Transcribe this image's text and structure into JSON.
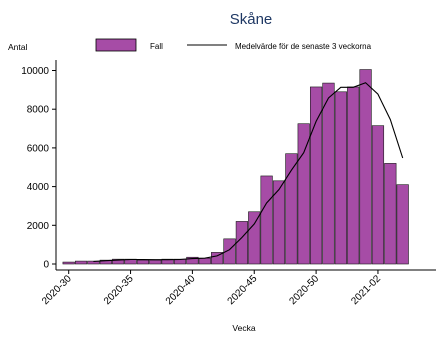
{
  "chart_data": {
    "type": "bar",
    "title": "Skåne",
    "ylabel": "Antal",
    "xlabel": "Vecka",
    "ylim": [
      0,
      11000
    ],
    "yticks": [
      0,
      2000,
      4000,
      6000,
      8000,
      10000
    ],
    "grid": false,
    "legend_position": "top",
    "categories": [
      "2020-30",
      "2020-31",
      "2020-32",
      "2020-33",
      "2020-34",
      "2020-35",
      "2020-36",
      "2020-37",
      "2020-38",
      "2020-39",
      "2020-40",
      "2020-41",
      "2020-42",
      "2020-43",
      "2020-44",
      "2020-45",
      "2020-46",
      "2020-47",
      "2020-48",
      "2020-49",
      "2020-50",
      "2020-51",
      "2020-52",
      "2020-53",
      "2021-01",
      "2021-02",
      "2021-03",
      "2021-04"
    ],
    "xtick_labels": [
      "2020-30",
      "2020-35",
      "2020-40",
      "2020-45",
      "2020-50",
      "2021-02"
    ],
    "series": [
      {
        "name": "Fall",
        "type": "bar",
        "color": "#a64ca6",
        "values": [
          100,
          150,
          150,
          200,
          250,
          250,
          200,
          200,
          250,
          250,
          350,
          300,
          600,
          1300,
          2200,
          2700,
          4550,
          4300,
          5700,
          7250,
          9150,
          9350,
          8900,
          9150,
          10050,
          7150,
          5200,
          4100
        ]
      },
      {
        "name": "Medelvärde för de senaste 3 veckorna",
        "type": "line",
        "color": "#000000",
        "values": [
          null,
          null,
          130,
          170,
          200,
          230,
          230,
          220,
          220,
          230,
          280,
          300,
          420,
          740,
          1370,
          2070,
          3150,
          3850,
          4850,
          5750,
          7370,
          8580,
          9130,
          9130,
          9370,
          8780,
          7470,
          5480
        ]
      }
    ]
  }
}
